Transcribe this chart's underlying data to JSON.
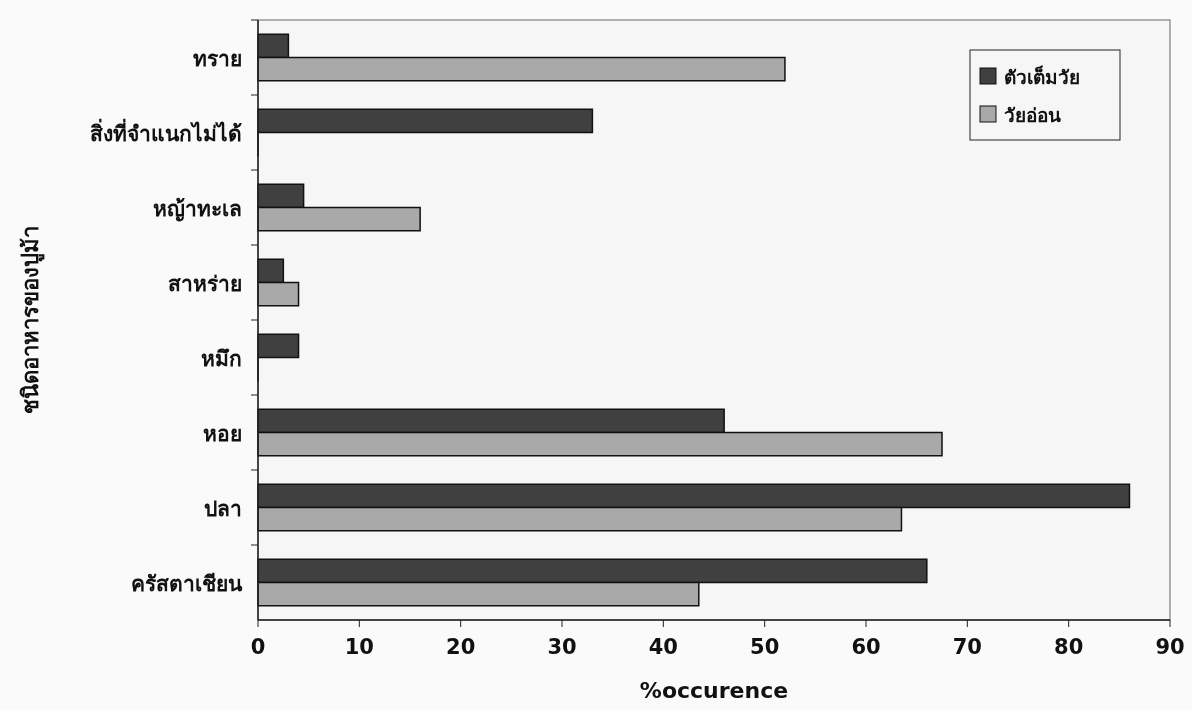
{
  "chart_data": {
    "type": "bar",
    "orientation": "horizontal",
    "xlabel": "%occurence",
    "ylabel": "ชนิดอาหารของปูม้า",
    "categories": [
      "ทราย",
      "สิ่งที่จำแนกไม่ได้",
      "หญ้าทะเล",
      "สาหร่าย",
      "หมึก",
      "หอย",
      "ปลา",
      "ครัสตาเชียน"
    ],
    "series": [
      {
        "name": "ตัวเต็มวัย",
        "color": "#404040",
        "values": [
          3,
          33,
          4.5,
          2.5,
          4,
          46,
          86,
          66
        ]
      },
      {
        "name": "วัยอ่อน",
        "color": "#a9a9a9",
        "values": [
          52,
          0,
          16,
          4,
          0,
          67.5,
          63.5,
          43.5
        ]
      }
    ],
    "xlim": [
      0,
      90
    ],
    "xticks": [
      0,
      10,
      20,
      30,
      40,
      50,
      60,
      70,
      80,
      90
    ],
    "legend": "top right"
  }
}
